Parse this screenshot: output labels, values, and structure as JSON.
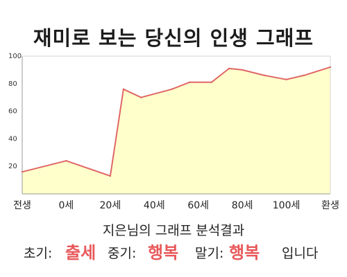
{
  "chart_data": {
    "type": "area",
    "title": "재미로 보는 당신의 인생 그래프",
    "categories": [
      "전생",
      "0세",
      "20세",
      "40세",
      "60세",
      "80세",
      "100세",
      "환생"
    ],
    "x": [
      -10,
      0,
      10,
      20,
      30,
      40,
      50,
      60
    ],
    "x_ticks": [
      -10,
      0,
      10,
      20,
      30,
      40,
      50,
      60
    ],
    "y_ticks": [
      20,
      40,
      60,
      80,
      100
    ],
    "ylim": [
      0,
      100
    ],
    "xlim": [
      -10,
      60
    ],
    "xlabel": "",
    "ylabel": "",
    "series": [
      {
        "x": [
          -10,
          0,
          10,
          13,
          17,
          24,
          28,
          33,
          37,
          40,
          45,
          50,
          54,
          60
        ],
        "values": [
          16,
          24,
          13,
          76,
          70,
          76,
          81,
          81,
          91,
          90,
          86,
          83,
          86,
          92
        ]
      }
    ],
    "grid": false,
    "colors": {
      "line": "#e06666",
      "fill": "#ffffcc",
      "axis": "#9a9a9a"
    }
  },
  "summary": {
    "line1": "지은님의 그래프 분석결과",
    "early_label": "초기:",
    "early_value": "출세",
    "middle_label": "중기:",
    "middle_value": "행복",
    "late_label": "말기:",
    "late_value": "행복",
    "ending": "입니다"
  }
}
